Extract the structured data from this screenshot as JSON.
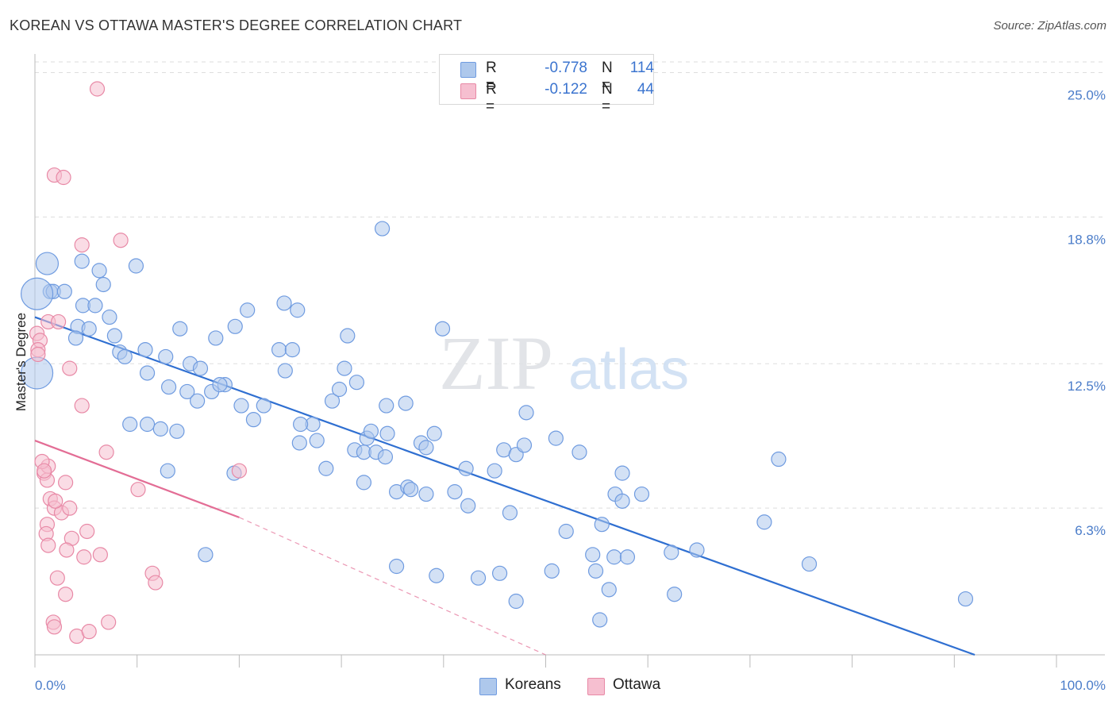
{
  "header": {
    "title": "KOREAN VS OTTAWA MASTER'S DEGREE CORRELATION CHART",
    "source": "Source: ZipAtlas.com"
  },
  "watermark": {
    "zip": "ZIP",
    "atlas": "atlas"
  },
  "legend": {
    "rows": [
      {
        "r_label": "R =",
        "r_value": "-0.778",
        "n_label": "N =",
        "n_value": "114"
      },
      {
        "r_label": "R =",
        "r_value": "-0.122",
        "n_label": "N =",
        "n_value": "44"
      }
    ]
  },
  "bottom_legend": {
    "koreans": "Koreans",
    "ottawa": "Ottawa"
  },
  "colors": {
    "koreans_fill": "#aec8ec",
    "koreans_stroke": "#6f9be0",
    "koreans_line": "#2f6fd1",
    "ottawa_fill": "#f6bfd0",
    "ottawa_stroke": "#e889a6",
    "ottawa_line": "#e36d95",
    "tick": "#4a7cc9",
    "grid": "#dddddd"
  },
  "chart_data": {
    "type": "scatter",
    "title": "KOREAN VS OTTAWA MASTER'S DEGREE CORRELATION CHART",
    "xlabel": "",
    "ylabel": "Master's Degree",
    "xlim": [
      0,
      100
    ],
    "ylim": [
      0,
      25.8
    ],
    "x_tick_labels": [
      "0.0%",
      "100.0%"
    ],
    "y_ticks": [
      6.3,
      12.5,
      18.8,
      25.0
    ],
    "y_tick_labels": [
      "6.3%",
      "12.5%",
      "18.8%",
      "25.0%"
    ],
    "grid": true,
    "legend_position": "top-center",
    "series": [
      {
        "name": "Koreans",
        "r": -0.778,
        "n": 114,
        "trend": {
          "x": [
            0,
            92
          ],
          "y": [
            14.5,
            0.0
          ],
          "dashed_to": null
        },
        "points": [
          [
            1.2,
            16.8,
            14
          ],
          [
            4.6,
            16.9,
            9
          ],
          [
            1.5,
            15.6,
            9
          ],
          [
            1.8,
            15.6,
            9
          ],
          [
            2.9,
            15.6,
            9
          ],
          [
            0.2,
            15.5,
            20
          ],
          [
            0.2,
            12.1,
            20
          ],
          [
            6.3,
            16.5,
            9
          ],
          [
            6.7,
            15.9,
            9
          ],
          [
            9.9,
            16.7,
            9
          ],
          [
            4.7,
            15.0,
            9
          ],
          [
            5.9,
            15.0,
            9
          ],
          [
            7.3,
            14.5,
            9
          ],
          [
            4.2,
            14.1,
            9
          ],
          [
            5.3,
            14.0,
            9
          ],
          [
            4.0,
            13.6,
            9
          ],
          [
            7.8,
            13.7,
            9
          ],
          [
            8.3,
            13.0,
            9
          ],
          [
            8.8,
            12.8,
            9
          ],
          [
            10.8,
            13.1,
            9
          ],
          [
            12.8,
            12.8,
            9
          ],
          [
            14.2,
            14.0,
            9
          ],
          [
            15.2,
            12.5,
            9
          ],
          [
            16.2,
            12.3,
            9
          ],
          [
            17.7,
            13.6,
            9
          ],
          [
            19.6,
            14.1,
            9
          ],
          [
            20.8,
            14.8,
            9
          ],
          [
            23.9,
            13.1,
            9
          ],
          [
            25.2,
            13.1,
            9
          ],
          [
            24.5,
            12.2,
            9
          ],
          [
            24.4,
            15.1,
            9
          ],
          [
            25.7,
            14.8,
            9
          ],
          [
            11.0,
            12.1,
            9
          ],
          [
            13.1,
            11.5,
            9
          ],
          [
            14.9,
            11.3,
            9
          ],
          [
            15.9,
            10.9,
            9
          ],
          [
            17.3,
            11.3,
            9
          ],
          [
            18.6,
            11.6,
            9
          ],
          [
            18.1,
            11.6,
            9
          ],
          [
            20.2,
            10.7,
            9
          ],
          [
            22.4,
            10.7,
            9
          ],
          [
            21.4,
            10.1,
            9
          ],
          [
            9.3,
            9.9,
            9
          ],
          [
            11.0,
            9.9,
            9
          ],
          [
            12.3,
            9.7,
            9
          ],
          [
            13.9,
            9.6,
            9
          ],
          [
            27.2,
            9.9,
            9
          ],
          [
            26.0,
            9.9,
            9
          ],
          [
            25.9,
            9.1,
            9
          ],
          [
            27.6,
            9.2,
            9
          ],
          [
            29.1,
            10.9,
            9
          ],
          [
            30.3,
            12.3,
            9
          ],
          [
            29.8,
            11.4,
            9
          ],
          [
            31.3,
            8.8,
            9
          ],
          [
            28.5,
            8.0,
            9
          ],
          [
            32.2,
            8.7,
            9
          ],
          [
            30.6,
            13.7,
            9
          ],
          [
            31.5,
            11.7,
            9
          ],
          [
            32.5,
            9.3,
            9
          ],
          [
            32.2,
            7.4,
            9
          ],
          [
            33.4,
            8.7,
            9
          ],
          [
            34.3,
            8.5,
            9
          ],
          [
            32.9,
            9.6,
            9
          ],
          [
            34.4,
            10.7,
            9
          ],
          [
            34.5,
            9.5,
            9
          ],
          [
            34.0,
            18.3,
            9
          ],
          [
            36.3,
            10.8,
            9
          ],
          [
            35.4,
            7.0,
            9
          ],
          [
            36.5,
            7.2,
            9
          ],
          [
            36.8,
            7.1,
            9
          ],
          [
            37.8,
            9.1,
            9
          ],
          [
            38.3,
            8.9,
            9
          ],
          [
            39.1,
            9.5,
            9
          ],
          [
            38.3,
            6.9,
            9
          ],
          [
            39.9,
            14.0,
            9
          ],
          [
            41.1,
            7.0,
            9
          ],
          [
            42.2,
            8.0,
            9
          ],
          [
            42.4,
            6.4,
            9
          ],
          [
            45.0,
            7.9,
            9
          ],
          [
            46.5,
            6.1,
            9
          ],
          [
            45.9,
            8.8,
            9
          ],
          [
            47.1,
            8.6,
            9
          ],
          [
            47.9,
            9.0,
            9
          ],
          [
            48.1,
            10.4,
            9
          ],
          [
            51.0,
            9.3,
            9
          ],
          [
            53.3,
            8.7,
            9
          ],
          [
            57.5,
            7.8,
            9
          ],
          [
            56.8,
            6.9,
            9
          ],
          [
            57.5,
            6.6,
            9
          ],
          [
            59.4,
            6.9,
            9
          ],
          [
            55.5,
            5.6,
            9
          ],
          [
            52.0,
            5.3,
            9
          ],
          [
            45.5,
            3.5,
            9
          ],
          [
            39.3,
            3.4,
            9
          ],
          [
            35.4,
            3.8,
            9
          ],
          [
            43.4,
            3.3,
            9
          ],
          [
            47.1,
            2.3,
            9
          ],
          [
            50.6,
            3.6,
            9
          ],
          [
            54.9,
            3.6,
            9
          ],
          [
            54.6,
            4.3,
            9
          ],
          [
            56.7,
            4.2,
            9
          ],
          [
            58.0,
            4.2,
            9
          ],
          [
            56.2,
            2.8,
            9
          ],
          [
            62.3,
            4.4,
            9
          ],
          [
            64.8,
            4.5,
            9
          ],
          [
            62.6,
            2.6,
            9
          ],
          [
            55.3,
            1.5,
            9
          ],
          [
            72.8,
            8.4,
            9
          ],
          [
            71.4,
            5.7,
            9
          ],
          [
            75.8,
            3.9,
            9
          ],
          [
            91.1,
            2.4,
            9
          ],
          [
            16.7,
            4.3,
            9
          ],
          [
            13.0,
            7.9,
            9
          ],
          [
            19.5,
            7.8,
            9
          ]
        ]
      },
      {
        "name": "Ottawa",
        "r": -0.122,
        "n": 44,
        "trend": {
          "x": [
            0,
            20
          ],
          "y": [
            9.2,
            5.9
          ],
          "dashed_to": [
            50,
            0.0
          ]
        },
        "points": [
          [
            6.1,
            24.3,
            9
          ],
          [
            1.9,
            20.6,
            9
          ],
          [
            2.8,
            20.5,
            9
          ],
          [
            4.6,
            17.6,
            9
          ],
          [
            8.4,
            17.8,
            9
          ],
          [
            1.3,
            14.3,
            9
          ],
          [
            2.3,
            14.3,
            9
          ],
          [
            0.2,
            13.8,
            9
          ],
          [
            0.5,
            13.5,
            9
          ],
          [
            0.3,
            13.1,
            9
          ],
          [
            0.3,
            12.9,
            9
          ],
          [
            3.4,
            12.3,
            9
          ],
          [
            4.6,
            10.7,
            9
          ],
          [
            7.0,
            8.7,
            9
          ],
          [
            0.9,
            7.8,
            9
          ],
          [
            1.2,
            7.5,
            9
          ],
          [
            1.3,
            8.1,
            9
          ],
          [
            3.0,
            7.4,
            9
          ],
          [
            10.1,
            7.1,
            9
          ],
          [
            20.0,
            7.9,
            9
          ],
          [
            1.5,
            6.7,
            9
          ],
          [
            1.9,
            6.3,
            9
          ],
          [
            2.6,
            6.1,
            9
          ],
          [
            3.4,
            6.3,
            9
          ],
          [
            1.2,
            5.6,
            9
          ],
          [
            1.1,
            5.2,
            9
          ],
          [
            3.6,
            5.0,
            9
          ],
          [
            5.1,
            5.3,
            9
          ],
          [
            1.3,
            4.7,
            9
          ],
          [
            4.8,
            4.2,
            9
          ],
          [
            6.4,
            4.3,
            9
          ],
          [
            11.5,
            3.5,
            9
          ],
          [
            11.8,
            3.1,
            9
          ],
          [
            2.2,
            3.3,
            9
          ],
          [
            3.0,
            2.6,
            9
          ],
          [
            1.8,
            1.4,
            9
          ],
          [
            1.9,
            1.2,
            9
          ],
          [
            7.2,
            1.4,
            9
          ],
          [
            4.1,
            0.8,
            9
          ],
          [
            5.3,
            1.0,
            9
          ],
          [
            0.7,
            8.3,
            9
          ],
          [
            0.9,
            7.9,
            9
          ],
          [
            2.0,
            6.6,
            9
          ],
          [
            3.1,
            4.5,
            9
          ]
        ]
      }
    ]
  }
}
